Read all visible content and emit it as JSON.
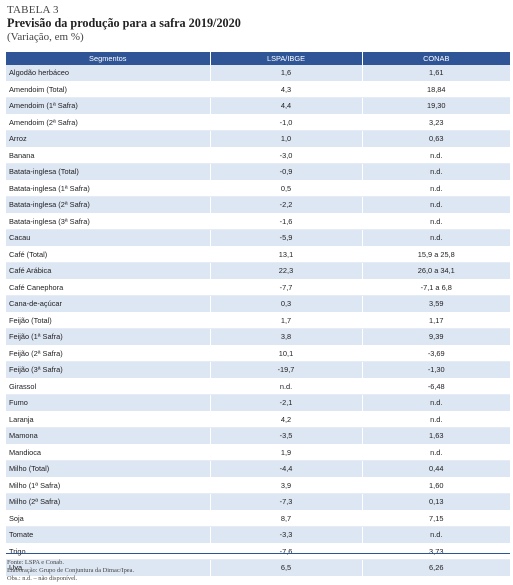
{
  "header": {
    "label": "TABELA 3",
    "title": "Previsão da produção para a safra 2019/2020",
    "subtitle": "(Variação, em %)"
  },
  "table": {
    "columns": [
      "Segmentos",
      "LSPA/IBGE",
      "CONAB"
    ],
    "rows": [
      {
        "segment": "Algodão herbáceo",
        "lspa": "1,6",
        "conab": "1,61"
      },
      {
        "segment": "Amendoim (Total)",
        "lspa": "4,3",
        "conab": "18,84"
      },
      {
        "segment": "Amendoim (1ª Safra)",
        "lspa": "4,4",
        "conab": "19,30"
      },
      {
        "segment": "Amendoim (2ª Safra)",
        "lspa": "-1,0",
        "conab": "3,23"
      },
      {
        "segment": "Arroz",
        "lspa": "1,0",
        "conab": "0,63"
      },
      {
        "segment": "Banana",
        "lspa": "-3,0",
        "conab": "n.d."
      },
      {
        "segment": "Batata-inglesa (Total)",
        "lspa": "-0,9",
        "conab": "n.d."
      },
      {
        "segment": "Batata-inglesa (1ª Safra)",
        "lspa": "0,5",
        "conab": "n.d."
      },
      {
        "segment": "Batata-inglesa (2ª Safra)",
        "lspa": "-2,2",
        "conab": "n.d."
      },
      {
        "segment": "Batata-inglesa (3ª Safra)",
        "lspa": "-1,6",
        "conab": "n.d."
      },
      {
        "segment": "Cacau",
        "lspa": "-5,9",
        "conab": "n.d."
      },
      {
        "segment": "Café (Total)",
        "lspa": "13,1",
        "conab": "15,9 a 25,8"
      },
      {
        "segment": "Café Arábica",
        "lspa": "22,3",
        "conab": "26,0 a 34,1"
      },
      {
        "segment": "Café Canephora",
        "lspa": "-7,7",
        "conab": "-7,1 a 6,8"
      },
      {
        "segment": "Cana-de-açúcar",
        "lspa": "0,3",
        "conab": "3,59"
      },
      {
        "segment": "Feijão (Total)",
        "lspa": "1,7",
        "conab": "1,17"
      },
      {
        "segment": "Feijão (1ª Safra)",
        "lspa": "3,8",
        "conab": "9,39"
      },
      {
        "segment": "Feijão (2ª Safra)",
        "lspa": "10,1",
        "conab": "-3,69"
      },
      {
        "segment": "Feijão (3ª Safra)",
        "lspa": "-19,7",
        "conab": "-1,30"
      },
      {
        "segment": "Girassol",
        "lspa": "n.d.",
        "conab": "-6,48"
      },
      {
        "segment": "Fumo",
        "lspa": "-2,1",
        "conab": "n.d."
      },
      {
        "segment": "Laranja",
        "lspa": "4,2",
        "conab": "n.d."
      },
      {
        "segment": "Mamona",
        "lspa": "-3,5",
        "conab": "1,63"
      },
      {
        "segment": "Mandioca",
        "lspa": "1,9",
        "conab": "n.d."
      },
      {
        "segment": "Milho (Total)",
        "lspa": "-4,4",
        "conab": "0,44"
      },
      {
        "segment": "Milho (1ª Safra)",
        "lspa": "3,9",
        "conab": "1,60"
      },
      {
        "segment": "Milho (2ª Safra)",
        "lspa": "-7,3",
        "conab": "0,13"
      },
      {
        "segment": "Soja",
        "lspa": "8,7",
        "conab": "7,15"
      },
      {
        "segment": "Tomate",
        "lspa": "-3,3",
        "conab": "n.d."
      },
      {
        "segment": "Trigo",
        "lspa": "-7,6",
        "conab": "3,73"
      },
      {
        "segment": "Uva",
        "lspa": "6,5",
        "conab": "6,26"
      }
    ]
  },
  "footer": {
    "source": "Fonte: LSPA e Conab.",
    "elaboration": "Elaboração: Grupo de Conjuntura da Dimac/Ipea.",
    "note": "Obs.: n.d. – não disponível."
  },
  "colors": {
    "header_bg": "#2f5597",
    "band_bg": "#dde6f3"
  }
}
